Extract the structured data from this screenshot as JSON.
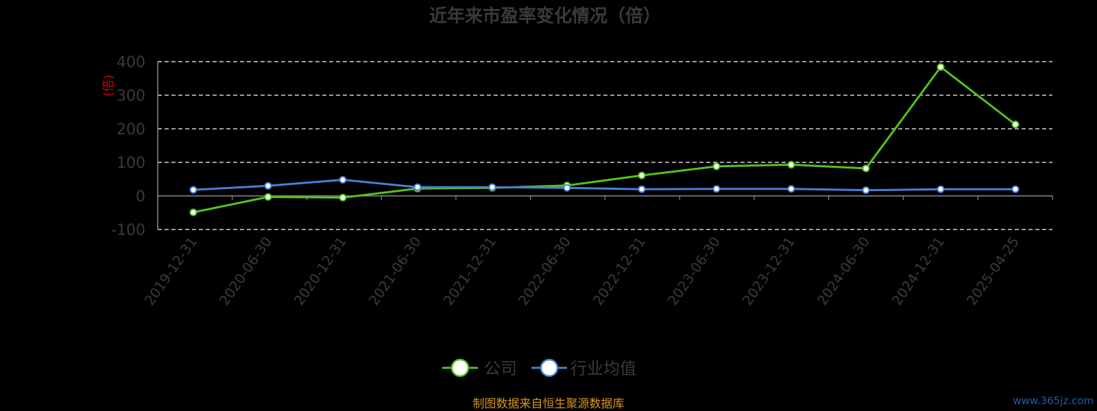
{
  "chart_data": {
    "type": "line",
    "title": "近年来市盈率变化情况（倍）",
    "ylabel": "(倍)",
    "ylim": [
      -100,
      400
    ],
    "yticks": [
      -100,
      0,
      100,
      200,
      300,
      400
    ],
    "grid": true,
    "categories": [
      "2019-12-31",
      "2020-06-30",
      "2020-12-31",
      "2021-06-30",
      "2021-12-31",
      "2022-06-30",
      "2022-12-31",
      "2023-06-30",
      "2023-12-31",
      "2024-06-30",
      "2024-12-31",
      "2025-04-25"
    ],
    "series": [
      {
        "name": "公司",
        "color": "#52c41a",
        "values": [
          -49,
          -3,
          -5,
          22,
          24,
          31,
          61,
          88,
          93,
          82,
          384,
          213
        ]
      },
      {
        "name": "行业均值",
        "color": "#4a7fd8",
        "values": [
          18,
          30,
          48,
          26,
          26,
          24,
          20,
          21,
          21,
          17,
          20,
          20
        ]
      }
    ],
    "legend_position": "bottom-center"
  },
  "source_note": "制图数据来自恒生聚源数据库",
  "watermark": "www.365jz.com"
}
